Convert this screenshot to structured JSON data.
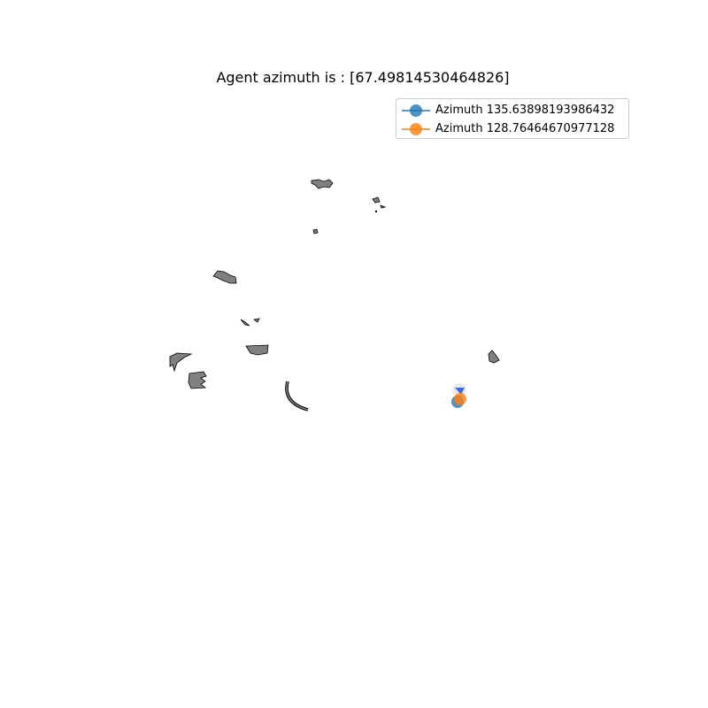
{
  "chart_data": {
    "type": "scatter",
    "title": "Agent azimuth is : [67.49814530464826]",
    "xlabel": "",
    "ylabel": "",
    "grid": false,
    "axes_visible": false,
    "legend_placement": "top-right",
    "series": [
      {
        "name": "Azimuth 135.63898193986432",
        "color": "#1f77b4",
        "marker": "circle",
        "opacity": 0.8
      },
      {
        "name": "Azimuth 128.76464670977128",
        "color": "#ff7f0e",
        "marker": "circle",
        "opacity": 0.8
      }
    ],
    "obstacle_color": "#808080",
    "agent_color": "#4169e1"
  }
}
